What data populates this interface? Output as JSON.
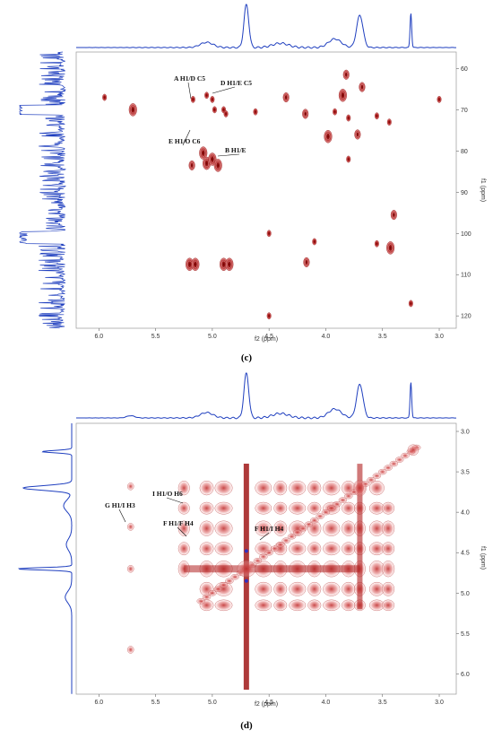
{
  "chart_data": [
    {
      "type": "heatmap",
      "panel_label": "(c)",
      "xlabel": "f2 (ppm)",
      "ylabel": "f1 (ppm)",
      "xlim": [
        6.2,
        2.85
      ],
      "ylim": [
        56,
        123
      ],
      "x_ticks": [
        "6.0",
        "5.5",
        "5.0",
        "4.5",
        "4.0",
        "3.5",
        "3.0"
      ],
      "y_ticks": [
        "60",
        "70",
        "80",
        "90",
        "100",
        "110",
        "120"
      ],
      "y_tick_values": [
        60,
        70,
        80,
        90,
        100,
        110,
        120
      ],
      "x_tick_values": [
        6.0,
        5.5,
        5.0,
        4.5,
        4.0,
        3.5,
        3.0
      ],
      "annotations": [
        {
          "text": "A H1/D C5",
          "x": 5.18,
          "y": 65
        },
        {
          "text": "D H1/E C5",
          "x": 5.0,
          "y": 66.5
        },
        {
          "text": "E H1/O C6",
          "x": 5.08,
          "y": 76
        },
        {
          "text": "B H1/E",
          "x": 4.98,
          "y": 80
        }
      ],
      "peaks": [
        {
          "x": 5.7,
          "y": 70.0,
          "i": 3
        },
        {
          "x": 5.17,
          "y": 67.5,
          "i": 1
        },
        {
          "x": 5.05,
          "y": 66.5,
          "i": 1
        },
        {
          "x": 5.0,
          "y": 67.5,
          "i": 1
        },
        {
          "x": 4.98,
          "y": 70.0,
          "i": 1
        },
        {
          "x": 4.9,
          "y": 70.0,
          "i": 1
        },
        {
          "x": 4.88,
          "y": 71.0,
          "i": 1
        },
        {
          "x": 4.62,
          "y": 70.5,
          "i": 1
        },
        {
          "x": 4.35,
          "y": 67.0,
          "i": 2
        },
        {
          "x": 4.18,
          "y": 71.0,
          "i": 2
        },
        {
          "x": 3.98,
          "y": 76.5,
          "i": 3
        },
        {
          "x": 3.85,
          "y": 66.5,
          "i": 3
        },
        {
          "x": 3.82,
          "y": 61.5,
          "i": 2
        },
        {
          "x": 3.68,
          "y": 64.5,
          "i": 2
        },
        {
          "x": 3.72,
          "y": 76.0,
          "i": 2
        },
        {
          "x": 3.8,
          "y": 72.0,
          "i": 1
        },
        {
          "x": 3.8,
          "y": 82.0,
          "i": 1
        },
        {
          "x": 3.92,
          "y": 70.5,
          "i": 1
        },
        {
          "x": 3.44,
          "y": 73.0,
          "i": 1
        },
        {
          "x": 3.55,
          "y": 71.5,
          "i": 1
        },
        {
          "x": 3.0,
          "y": 67.5,
          "i": 1
        },
        {
          "x": 5.08,
          "y": 80.5,
          "i": 3
        },
        {
          "x": 5.05,
          "y": 83.0,
          "i": 3
        },
        {
          "x": 5.0,
          "y": 82.0,
          "i": 3
        },
        {
          "x": 4.95,
          "y": 83.5,
          "i": 3
        },
        {
          "x": 5.18,
          "y": 83.5,
          "i": 2
        },
        {
          "x": 3.4,
          "y": 95.5,
          "i": 2
        },
        {
          "x": 3.43,
          "y": 103.5,
          "i": 3
        },
        {
          "x": 3.55,
          "y": 102.5,
          "i": 1
        },
        {
          "x": 4.1,
          "y": 102.0,
          "i": 1
        },
        {
          "x": 4.5,
          "y": 100.0,
          "i": 1
        },
        {
          "x": 5.2,
          "y": 107.5,
          "i": 3
        },
        {
          "x": 5.15,
          "y": 107.5,
          "i": 3
        },
        {
          "x": 4.9,
          "y": 107.5,
          "i": 3
        },
        {
          "x": 4.85,
          "y": 107.5,
          "i": 3
        },
        {
          "x": 4.17,
          "y": 107.0,
          "i": 2
        },
        {
          "x": 4.5,
          "y": 120.0,
          "i": 1
        },
        {
          "x": 3.25,
          "y": 117.0,
          "i": 1
        },
        {
          "x": 5.95,
          "y": 67.0,
          "i": 1
        }
      ],
      "top_projection_peaks": [
        {
          "x": 5.05,
          "h": 0.12,
          "w": 0.08
        },
        {
          "x": 4.7,
          "h": 1.0,
          "w": 0.03
        },
        {
          "x": 4.4,
          "h": 0.1,
          "w": 0.1
        },
        {
          "x": 3.92,
          "h": 0.2,
          "w": 0.08
        },
        {
          "x": 3.7,
          "h": 0.75,
          "w": 0.04
        },
        {
          "x": 3.25,
          "h": 0.8,
          "w": 0.01
        }
      ]
    },
    {
      "type": "heatmap",
      "panel_label": "(d)",
      "xlabel": "f2 (ppm)",
      "ylabel": "f1 (ppm)",
      "xlim": [
        6.2,
        2.85
      ],
      "ylim": [
        2.9,
        6.25
      ],
      "x_ticks": [
        "6.0",
        "5.5",
        "5.0",
        "4.5",
        "4.0",
        "3.5",
        "3.0"
      ],
      "y_ticks": [
        "3.0",
        "3.5",
        "4.0",
        "4.5",
        "5.0",
        "5.5",
        "6.0"
      ],
      "y_tick_values": [
        3.0,
        3.5,
        4.0,
        4.5,
        5.0,
        5.5,
        6.0
      ],
      "x_tick_values": [
        6.0,
        5.5,
        5.0,
        4.5,
        4.0,
        3.5,
        3.0
      ],
      "annotations": [
        {
          "text": "G H1/I H3",
          "x": 5.75,
          "y": 3.95
        },
        {
          "text": "I H1/O H6",
          "x": 5.15,
          "y": 3.75
        },
        {
          "text": "F H1/F H4",
          "x": 5.12,
          "y": 4.1
        },
        {
          "text": "F H1/I H4",
          "x": 4.6,
          "y": 4.3
        }
      ],
      "top_projection_peaks": [
        {
          "x": 5.72,
          "h": 0.05,
          "w": 0.05
        },
        {
          "x": 5.05,
          "h": 0.12,
          "w": 0.08
        },
        {
          "x": 4.7,
          "h": 1.0,
          "w": 0.03
        },
        {
          "x": 4.4,
          "h": 0.1,
          "w": 0.1
        },
        {
          "x": 3.92,
          "h": 0.2,
          "w": 0.08
        },
        {
          "x": 3.7,
          "h": 0.75,
          "w": 0.04
        },
        {
          "x": 3.25,
          "h": 0.8,
          "w": 0.01
        }
      ]
    }
  ]
}
